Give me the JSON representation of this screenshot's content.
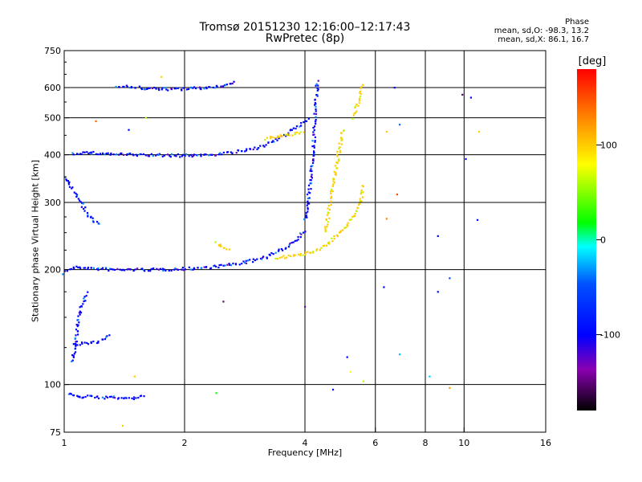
{
  "chart_data": {
    "type": "scatter",
    "title": "Tromsø 20151230 12:16:00–12:17:43",
    "subtitle": "RwPretec (8p)",
    "xlabel": "Frequency [MHz]",
    "ylabel": "Stationary phase Virtual Height [km]",
    "x_scale": "log",
    "y_scale": "log",
    "xlim": [
      1,
      16
    ],
    "ylim": [
      75,
      750
    ],
    "x_ticks": [
      1,
      2,
      4,
      6,
      8,
      10,
      16
    ],
    "x_tick_labels": [
      "1",
      "2",
      "4",
      "6",
      "8",
      "10",
      "16"
    ],
    "y_ticks": [
      75,
      100,
      200,
      300,
      400,
      500,
      600,
      750
    ],
    "y_tick_labels": [
      "75",
      "100",
      "200",
      "300",
      "400",
      "500",
      "600",
      "750"
    ],
    "grid": true,
    "grid_x": [
      2,
      4,
      6,
      8,
      10
    ],
    "grid_y": [
      100,
      200,
      300,
      400,
      500,
      600
    ],
    "phase_legend": {
      "heading": "Phase",
      "line_o": "mean, sd,O: -98.3, 13.2",
      "line_x": "mean, sd,X:  86.1, 16.7"
    },
    "colorbar": {
      "unit": "[deg]",
      "range": [
        -180,
        180
      ],
      "ticks": [
        100,
        0,
        -100
      ],
      "tick_labels": [
        "100",
        "0",
        "-100"
      ]
    },
    "traces": [
      {
        "mode": "O",
        "phase": -100,
        "x": [
          1.0,
          1.02,
          1.05,
          1.1,
          1.15,
          1.2,
          1.25,
          1.3,
          1.4,
          1.5,
          1.7,
          2.0,
          2.3,
          2.6,
          2.9,
          3.2,
          3.5,
          3.8,
          4.0
        ],
        "y": [
          196,
          200,
          202,
          203,
          202,
          201,
          201,
          200,
          200,
          200,
          200,
          201,
          203,
          206,
          210,
          216,
          225,
          240,
          255
        ]
      },
      {
        "mode": "O",
        "phase": -100,
        "x": [
          4.0,
          4.05,
          4.1,
          4.15,
          4.2,
          4.25,
          4.3
        ],
        "y": [
          270,
          290,
          320,
          360,
          420,
          520,
          630
        ]
      },
      {
        "mode": "O",
        "phase": -100,
        "x": [
          1.05,
          1.1,
          1.2,
          1.3,
          1.5,
          1.7,
          2.0,
          2.3,
          2.6,
          2.9,
          3.2,
          3.5,
          3.8,
          4.1
        ],
        "y": [
          403,
          405,
          404,
          402,
          400,
          399,
          398,
          400,
          405,
          412,
          425,
          445,
          470,
          500
        ]
      },
      {
        "mode": "O",
        "phase": -100,
        "x": [
          1.35,
          1.5,
          1.7,
          2.0,
          2.3,
          2.5,
          2.7
        ],
        "y": [
          608,
          600,
          595,
          595,
          600,
          608,
          618
        ]
      },
      {
        "mode": "O",
        "phase": -100,
        "x": [
          1.0,
          1.04,
          1.08,
          1.12,
          1.16,
          1.2,
          1.23
        ],
        "y": [
          350,
          330,
          310,
          290,
          275,
          265,
          260
        ]
      },
      {
        "mode": "O",
        "phase": -100,
        "x": [
          1.05,
          1.1,
          1.15,
          1.2,
          1.25,
          1.3
        ],
        "y": [
          128,
          128,
          128,
          129,
          131,
          136
        ]
      },
      {
        "mode": "O",
        "phase": -100,
        "x": [
          1.05,
          1.08,
          1.1,
          1.15
        ],
        "y": [
          115,
          140,
          160,
          175
        ]
      },
      {
        "mode": "O",
        "phase": -100,
        "x": [
          1.02,
          1.06,
          1.1,
          1.5,
          1.55,
          1.6
        ],
        "y": [
          95,
          94,
          93,
          92,
          93,
          94
        ]
      },
      {
        "mode": "X",
        "phase": 100,
        "x": [
          3.4,
          3.6,
          3.8,
          4.1,
          4.3,
          4.5,
          4.7,
          4.9,
          5.1,
          5.3,
          5.45,
          5.55,
          5.62
        ],
        "y": [
          215,
          216,
          218,
          222,
          226,
          232,
          240,
          250,
          262,
          278,
          295,
          315,
          335
        ]
      },
      {
        "mode": "X",
        "phase": 100,
        "x": [
          4.5,
          4.6,
          4.7,
          4.8,
          4.9,
          5.0
        ],
        "y": [
          250,
          290,
          330,
          380,
          430,
          470
        ]
      },
      {
        "mode": "X",
        "phase": 100,
        "x": [
          3.2,
          3.4,
          3.6,
          3.8,
          4.0
        ],
        "y": [
          440,
          445,
          450,
          455,
          460
        ]
      },
      {
        "mode": "X",
        "phase": 100,
        "x": [
          5.3,
          5.4,
          5.5,
          5.6
        ],
        "y": [
          500,
          540,
          580,
          620
        ]
      },
      {
        "mode": "X",
        "phase": 100,
        "x": [
          2.4,
          2.5,
          2.6
        ],
        "y": [
          235,
          228,
          225
        ]
      }
    ],
    "scatter_points": [
      {
        "x": 6.3,
        "y": 180,
        "phase": -100
      },
      {
        "x": 8.6,
        "y": 175,
        "phase": -100
      },
      {
        "x": 9.2,
        "y": 190,
        "phase": -50
      },
      {
        "x": 6.9,
        "y": 120,
        "phase": -20
      },
      {
        "x": 8.2,
        "y": 105,
        "phase": -20
      },
      {
        "x": 6.8,
        "y": 315,
        "phase": 150
      },
      {
        "x": 6.4,
        "y": 272,
        "phase": 130
      },
      {
        "x": 8.6,
        "y": 245,
        "phase": -100
      },
      {
        "x": 10.8,
        "y": 270,
        "phase": -100
      },
      {
        "x": 6.7,
        "y": 600,
        "phase": -100
      },
      {
        "x": 9.9,
        "y": 575,
        "phase": -150
      },
      {
        "x": 10.4,
        "y": 565,
        "phase": -100
      },
      {
        "x": 6.9,
        "y": 480,
        "phase": -40
      },
      {
        "x": 6.4,
        "y": 460,
        "phase": 100
      },
      {
        "x": 10.9,
        "y": 460,
        "phase": 100
      },
      {
        "x": 10.1,
        "y": 390,
        "phase": -100
      },
      {
        "x": 5.2,
        "y": 108,
        "phase": 80
      },
      {
        "x": 5.6,
        "y": 102,
        "phase": 60
      },
      {
        "x": 2.4,
        "y": 95,
        "phase": 20
      },
      {
        "x": 1.5,
        "y": 105,
        "phase": 100
      },
      {
        "x": 9.2,
        "y": 98,
        "phase": 120
      },
      {
        "x": 2.5,
        "y": 165,
        "phase": -150
      },
      {
        "x": 4.0,
        "y": 160,
        "phase": -130
      },
      {
        "x": 5.1,
        "y": 118,
        "phase": -100
      },
      {
        "x": 1.4,
        "y": 78,
        "phase": 100
      },
      {
        "x": 1.6,
        "y": 500,
        "phase": 60
      },
      {
        "x": 1.45,
        "y": 465,
        "phase": -100
      },
      {
        "x": 1.2,
        "y": 490,
        "phase": 140
      },
      {
        "x": 1.75,
        "y": 640,
        "phase": 100
      },
      {
        "x": 4.7,
        "y": 97,
        "phase": -100
      }
    ]
  }
}
